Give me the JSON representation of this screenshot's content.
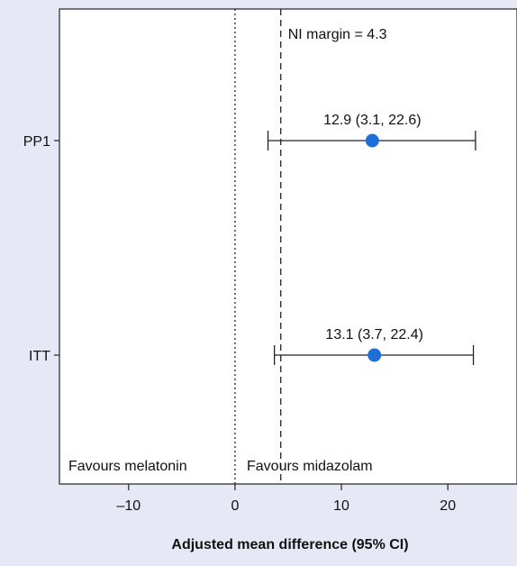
{
  "chart_data": {
    "type": "forest",
    "title": "",
    "xlabel": "Adjusted mean difference (95% CI)",
    "ylabel": "",
    "xlim": [
      -16.5,
      26.5
    ],
    "xticks": [
      -10,
      0,
      10,
      20
    ],
    "xtick_labels": [
      "–10",
      "0",
      "10",
      "20"
    ],
    "categories": [
      "PP1",
      "ITT"
    ],
    "estimates": [
      {
        "label": "PP1",
        "value": 12.9,
        "ci_low": 3.1,
        "ci_high": 22.6,
        "text": "12.9 (3.1, 22.6)"
      },
      {
        "label": "ITT",
        "value": 13.1,
        "ci_low": 3.7,
        "ci_high": 22.4,
        "text": "13.1 (3.7, 22.4)"
      }
    ],
    "reference_lines": [
      {
        "value": 0,
        "style": "dotted"
      },
      {
        "value": 4.3,
        "style": "dashed",
        "label": "NI margin = 4.3"
      }
    ],
    "region_labels": {
      "left": "Favours melatonin",
      "right": "Favours midazolam"
    },
    "point_color": "#1f6fd6",
    "grid": false
  }
}
